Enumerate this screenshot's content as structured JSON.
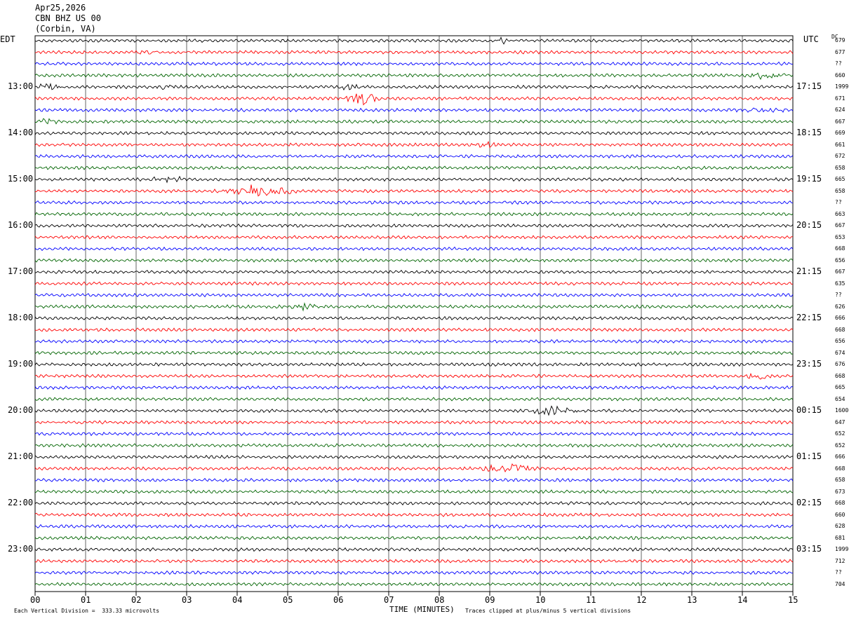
{
  "header": {
    "date": "Apr25,2026",
    "station": "CBN BHZ US 00",
    "location": "(Corbin, VA)"
  },
  "left_timezone": "EDT",
  "right_timezone": "UTC",
  "dc_label": "DC",
  "left_hour_labels": [
    "13:00",
    "14:00",
    "15:00",
    "16:00",
    "17:00",
    "18:00",
    "19:00",
    "20:00",
    "21:00",
    "22:00",
    "23:00"
  ],
  "right_hour_labels": [
    "17:15",
    "18:15",
    "19:15",
    "20:15",
    "21:15",
    "22:15",
    "23:15",
    "00:15",
    "01:15",
    "02:15",
    "03:15"
  ],
  "dc_offsets": [
    "679",
    "677",
    "??",
    "660",
    "1999",
    "671",
    "624",
    "667",
    "669",
    "661",
    "672",
    "658",
    "665",
    "658",
    "??",
    "663",
    "667",
    "653",
    "668",
    "656",
    "667",
    "635",
    "??",
    "626",
    "666",
    "668",
    "656",
    "674",
    "676",
    "668",
    "665",
    "654",
    "1600",
    "647",
    "652",
    "652",
    "666",
    "668",
    "658",
    "673",
    "668",
    "660",
    "628",
    "681",
    "1999",
    "712",
    "??",
    "704"
  ],
  "x_tick_labels": [
    "00",
    "01",
    "02",
    "03",
    "04",
    "05",
    "06",
    "07",
    "08",
    "09",
    "10",
    "11",
    "12",
    "13",
    "14",
    "15"
  ],
  "footer": {
    "scale_note": "Each Vertical Division =  333.33 microvolts",
    "x_axis_title": "TIME (MINUTES)",
    "clip_note": "Traces clipped at plus/minus 5 vertical divisions"
  },
  "colors": {
    "trace_cycle": [
      "#000000",
      "#ff0000",
      "#0000ff",
      "#006400"
    ],
    "grid": "#000000"
  },
  "chart_data": {
    "type": "line",
    "title": "CBN BHZ US 00 (Corbin, VA) Apr25,2026",
    "xlabel": "TIME (MINUTES)",
    "xlim": [
      0,
      15
    ],
    "trace_minutes_each": 15,
    "traces_per_hour": 4,
    "trace_count": 48,
    "first_trace_start_edt": "12:00",
    "first_trace_start_utc": "16:15",
    "scale_microvolts_per_division": 333.33,
    "clip_divisions": 5,
    "events": [
      {
        "trace": 0,
        "start_min": 9.0,
        "end_min": 9.5,
        "amplitude": 0.4
      },
      {
        "trace": 1,
        "start_min": 1.7,
        "end_min": 2.6,
        "amplitude": 0.3
      },
      {
        "trace": 3,
        "start_min": 14.0,
        "end_min": 15.0,
        "amplitude": 0.6
      },
      {
        "trace": 4,
        "start_min": 0.0,
        "end_min": 0.6,
        "amplitude": 0.5
      },
      {
        "trace": 4,
        "start_min": 2.4,
        "end_min": 2.8,
        "amplitude": 0.6
      },
      {
        "trace": 4,
        "start_min": 6.0,
        "end_min": 6.5,
        "amplitude": 0.6
      },
      {
        "trace": 5,
        "start_min": 6.1,
        "end_min": 6.9,
        "amplitude": 1.0
      },
      {
        "trace": 6,
        "start_min": 13.8,
        "end_min": 15.0,
        "amplitude": 0.4
      },
      {
        "trace": 7,
        "start_min": 0.0,
        "end_min": 0.5,
        "amplitude": 0.4
      },
      {
        "trace": 9,
        "start_min": 8.4,
        "end_min": 9.4,
        "amplitude": 0.3
      },
      {
        "trace": 12,
        "start_min": 2.0,
        "end_min": 3.2,
        "amplitude": 0.35
      },
      {
        "trace": 13,
        "start_min": 3.5,
        "end_min": 5.3,
        "amplitude": 1.0
      },
      {
        "trace": 29,
        "start_min": 14.0,
        "end_min": 14.7,
        "amplitude": 0.5
      },
      {
        "trace": 23,
        "start_min": 5.0,
        "end_min": 5.7,
        "amplitude": 0.5
      },
      {
        "trace": 32,
        "start_min": 9.6,
        "end_min": 10.9,
        "amplitude": 0.6
      },
      {
        "trace": 37,
        "start_min": 8.6,
        "end_min": 10.2,
        "amplitude": 0.6
      }
    ]
  }
}
